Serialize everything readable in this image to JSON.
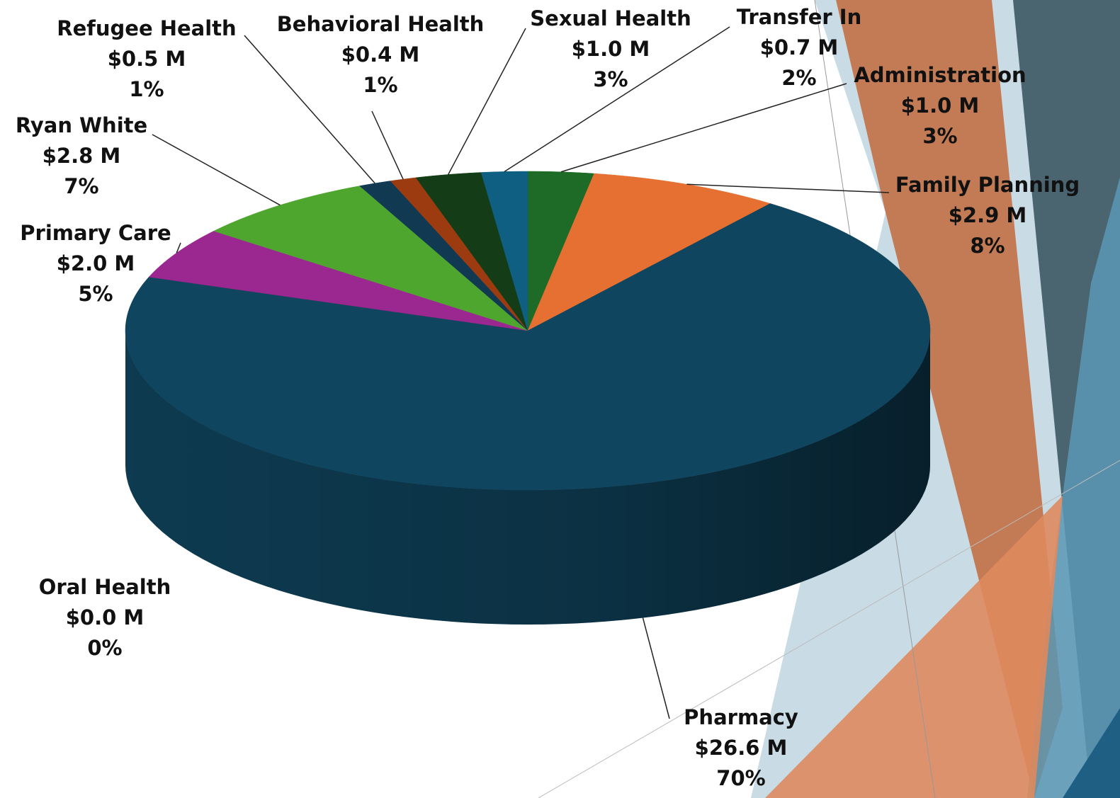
{
  "chart_data": {
    "type": "pie",
    "categories": [
      "Administration",
      "Family Planning",
      "Pharmacy",
      "Oral Health",
      "Primary Care",
      "Ryan White",
      "Refugee Health",
      "Behavioral Health",
      "Sexual Health",
      "Transfer In"
    ],
    "values": [
      1.0,
      2.9,
      26.6,
      0.0,
      2.0,
      2.8,
      0.5,
      0.4,
      1.0,
      0.7
    ],
    "value_labels": [
      "$1.0 M",
      "$2.9 M",
      "$26.6 M",
      "$0.0 M",
      "$2.0 M",
      "$2.8 M",
      "$0.5 M",
      "$0.4 M",
      "$1.0 M",
      "$0.7 M"
    ],
    "percents": [
      3,
      8,
      70,
      0,
      5,
      7,
      1,
      1,
      3,
      2
    ],
    "percent_labels": [
      "3%",
      "8%",
      "70%",
      "0%",
      "5%",
      "7%",
      "1%",
      "1%",
      "3%",
      "2%"
    ],
    "colors": [
      "#1e6b27",
      "#e57032",
      "#10455f",
      "#3b3b3b",
      "#9b2790",
      "#4fa62f",
      "#113a52",
      "#9c3b10",
      "#143d17",
      "#0e5f82"
    ]
  }
}
